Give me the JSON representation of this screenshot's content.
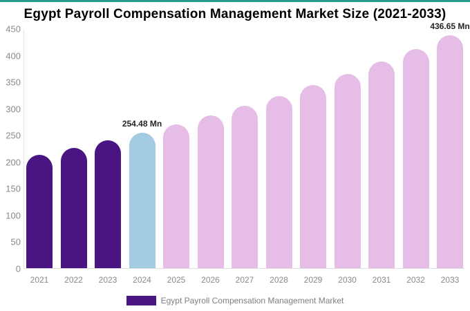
{
  "title": "Egypt Payroll Compensation Management Market Size (2021-2033)",
  "colors": {
    "top_accent": "#2a9d8f",
    "historical_bar": "#4a1582",
    "current_year_bar": "#a3cbe1",
    "forecast_bar": "#e5bde7",
    "axis_line": "#e4e4e4",
    "tick_text": "#8a8a8a",
    "annotation_text": "#252525",
    "title_text": "#000000"
  },
  "legend": {
    "label": "Egypt Payroll Compensation Management Market",
    "swatch_color": "#4a1582"
  },
  "chart_data": {
    "type": "bar",
    "title": "Egypt Payroll Compensation Management Market Size (2021-2033)",
    "xlabel": "",
    "ylabel": "",
    "ylim": [
      0,
      450
    ],
    "yticks": [
      0,
      50,
      100,
      150,
      200,
      250,
      300,
      350,
      400,
      450
    ],
    "grid": false,
    "legend_position": "bottom",
    "categories": [
      "2021",
      "2022",
      "2023",
      "2024",
      "2025",
      "2026",
      "2027",
      "2028",
      "2029",
      "2030",
      "2031",
      "2032",
      "2033"
    ],
    "values": [
      212.6,
      225.7,
      239.7,
      254.48,
      270.2,
      287.0,
      304.7,
      323.5,
      343.5,
      364.8,
      387.3,
      411.2,
      436.65
    ],
    "unit": "Mn",
    "series": [
      {
        "name": "Egypt Payroll Compensation Management Market",
        "values": [
          212.6,
          225.7,
          239.7,
          254.48,
          270.2,
          287.0,
          304.7,
          323.5,
          343.5,
          364.8,
          387.3,
          411.2,
          436.65
        ]
      }
    ],
    "bar_colors": [
      "#4a1582",
      "#4a1582",
      "#4a1582",
      "#a3cbe1",
      "#e5bde7",
      "#e5bde7",
      "#e5bde7",
      "#e5bde7",
      "#e5bde7",
      "#e5bde7",
      "#e5bde7",
      "#e5bde7",
      "#e5bde7"
    ],
    "annotations": [
      {
        "category": "2024",
        "text": "254.48 Mn"
      },
      {
        "category": "2033",
        "text": "436.65 Mn"
      }
    ]
  }
}
